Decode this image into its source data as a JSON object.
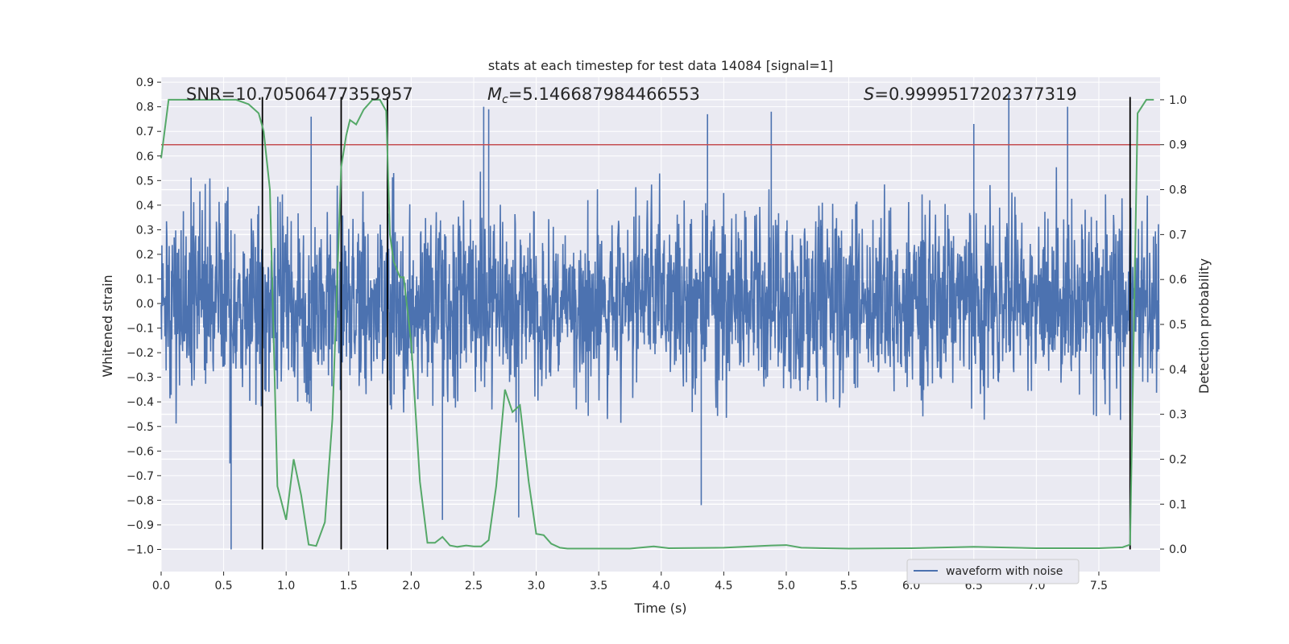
{
  "chart_data": {
    "type": "line",
    "title": "stats at each timestep for test data 14084 [signal=1]",
    "xlabel": "Time (s)",
    "ylabel_left": "Whitened strain",
    "ylabel_right": "Detection probability",
    "xlim": [
      0.0,
      7.99
    ],
    "ylim_left": [
      -1.09,
      0.92
    ],
    "ylim_right": [
      -0.05,
      1.05
    ],
    "x_ticks": [
      "0.0",
      "0.5",
      "1.0",
      "1.5",
      "2.0",
      "2.5",
      "3.0",
      "3.5",
      "4.0",
      "4.5",
      "5.0",
      "5.5",
      "6.0",
      "6.5",
      "7.0",
      "7.5"
    ],
    "left_ticks": [
      "0.9",
      "0.8",
      "0.7",
      "0.6",
      "0.5",
      "0.4",
      "0.3",
      "0.2",
      "0.1",
      "0.0",
      "−0.1",
      "−0.2",
      "−0.3",
      "−0.4",
      "−0.5",
      "−0.6",
      "−0.7",
      "−0.8",
      "−0.9",
      "−1.0"
    ],
    "right_ticks": [
      "1.0",
      "0.9",
      "0.8",
      "0.7",
      "0.6",
      "0.5",
      "0.4",
      "0.3",
      "0.2",
      "0.1",
      "0.0"
    ],
    "annotations": {
      "snr": "SNR=10.70506477355957",
      "mc_symbol": "M",
      "mc_sub": "c",
      "mc_value": "=5.146687984466553",
      "s_symbol": "S",
      "s_value": "=0.9999517202377319"
    },
    "threshold": 0.9,
    "vlines": [
      0.81,
      1.44,
      1.81,
      7.75
    ],
    "vline_range": [
      -1.0,
      0.84
    ],
    "waveform": {
      "name": "waveform with noise",
      "noise_seed": 14084,
      "samples": 2600,
      "typical_amplitude": 0.33,
      "spikes": [
        {
          "t": 0.56,
          "v": -1.0
        },
        {
          "t": 0.55,
          "v": -0.65
        },
        {
          "t": 1.2,
          "v": 0.76
        },
        {
          "t": 2.25,
          "v": -0.88
        },
        {
          "t": 2.58,
          "v": 0.8
        },
        {
          "t": 2.86,
          "v": -0.87
        },
        {
          "t": 4.32,
          "v": -0.82
        },
        {
          "t": 6.78,
          "v": 0.85
        },
        {
          "t": 7.25,
          "v": 0.8
        },
        {
          "t": 6.5,
          "v": 0.73
        },
        {
          "t": 4.88,
          "v": 0.78
        },
        {
          "t": 4.37,
          "v": 0.77
        },
        {
          "t": 2.62,
          "v": 0.79
        }
      ]
    },
    "detection_probability": {
      "name": "detection probability",
      "x": [
        0.0,
        0.06,
        0.11,
        0.2,
        0.3,
        0.4,
        0.5,
        0.6,
        0.7,
        0.78,
        0.82,
        0.87,
        0.93,
        1.0,
        1.06,
        1.12,
        1.18,
        1.24,
        1.31,
        1.37,
        1.44,
        1.48,
        1.51,
        1.56,
        1.62,
        1.69,
        1.75,
        1.8,
        1.83,
        1.86,
        1.91,
        1.94,
        2.0,
        2.07,
        2.13,
        2.19,
        2.25,
        2.31,
        2.37,
        2.44,
        2.5,
        2.56,
        2.62,
        2.68,
        2.75,
        2.81,
        2.87,
        2.94,
        3.0,
        3.06,
        3.12,
        3.19,
        3.25,
        3.5,
        3.75,
        3.94,
        4.06,
        4.5,
        4.88,
        5.0,
        5.12,
        5.5,
        6.0,
        6.5,
        7.0,
        7.5,
        7.69,
        7.75,
        7.81,
        7.88,
        7.94
      ],
      "y": [
        0.87,
        1.0,
        1.0,
        1.0,
        1.0,
        1.0,
        1.0,
        1.0,
        0.99,
        0.97,
        0.93,
        0.8,
        0.14,
        0.065,
        0.2,
        0.12,
        0.01,
        0.007,
        0.06,
        0.29,
        0.85,
        0.92,
        0.955,
        0.945,
        0.978,
        1.0,
        1.0,
        0.975,
        0.7,
        0.64,
        0.605,
        0.605,
        0.46,
        0.15,
        0.014,
        0.014,
        0.027,
        0.008,
        0.005,
        0.008,
        0.006,
        0.006,
        0.02,
        0.14,
        0.355,
        0.305,
        0.32,
        0.15,
        0.034,
        0.031,
        0.012,
        0.003,
        0.001,
        0.001,
        0.001,
        0.006,
        0.002,
        0.003,
        0.008,
        0.009,
        0.003,
        0.001,
        0.002,
        0.005,
        0.002,
        0.002,
        0.004,
        0.01,
        0.97,
        1.0,
        1.0
      ]
    },
    "legend": {
      "label": "waveform with noise",
      "position": "lower-right"
    },
    "colors": {
      "waveform": "#4c72b0",
      "probability": "#55a868",
      "threshold": "#c44e52",
      "vlines": "#000000",
      "axes_bg": "#eaeaf2",
      "grid": "#ffffff"
    }
  }
}
